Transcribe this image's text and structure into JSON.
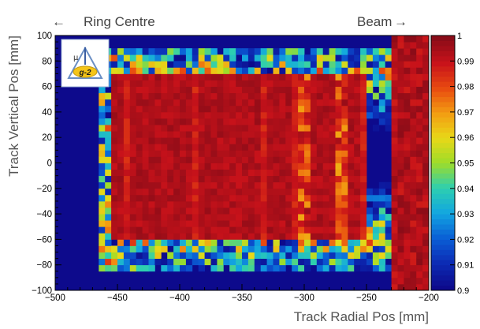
{
  "annotations": {
    "left_arrow": "←",
    "left_text": "Ring Centre",
    "right_text": "Beam",
    "right_arrow": "→"
  },
  "logo": {
    "symbol": "μ",
    "text": "g-2"
  },
  "colors": {
    "background_low": "#0d0a8c",
    "scale": [
      "#0d0a8c",
      "#0c2bb4",
      "#0a5fd6",
      "#12a6e0",
      "#2dcfb0",
      "#9ddc2a",
      "#e8d818",
      "#f39c12",
      "#e84a10",
      "#c8121a",
      "#8a0c18"
    ]
  },
  "chart_data": {
    "type": "heatmap",
    "title": "",
    "xlabel": "Track Radial Pos [mm]",
    "ylabel": "Track Vertical Pos [mm]",
    "xlim": [
      -500,
      -200
    ],
    "ylim": [
      -100,
      100
    ],
    "x_ticks": [
      "−500",
      "−450",
      "−400",
      "−350",
      "−300",
      "−250",
      "−200"
    ],
    "y_ticks": [
      "100",
      "80",
      "60",
      "40",
      "20",
      "0",
      "−20",
      "−40",
      "−60",
      "−80",
      "−100"
    ],
    "colorbar": {
      "range": [
        0.9,
        1
      ],
      "ticks": [
        "1",
        "0.99",
        "0.98",
        "0.97",
        "0.96",
        "0.95",
        "0.94",
        "0.93",
        "0.92",
        "0.91",
        "0.9"
      ]
    },
    "regions": {
      "high_efficiency_x": [
        -455,
        -248
      ],
      "high_efficiency_y": [
        -60,
        70
      ],
      "edge_x": -230
    },
    "grid": false,
    "legend": "none"
  }
}
